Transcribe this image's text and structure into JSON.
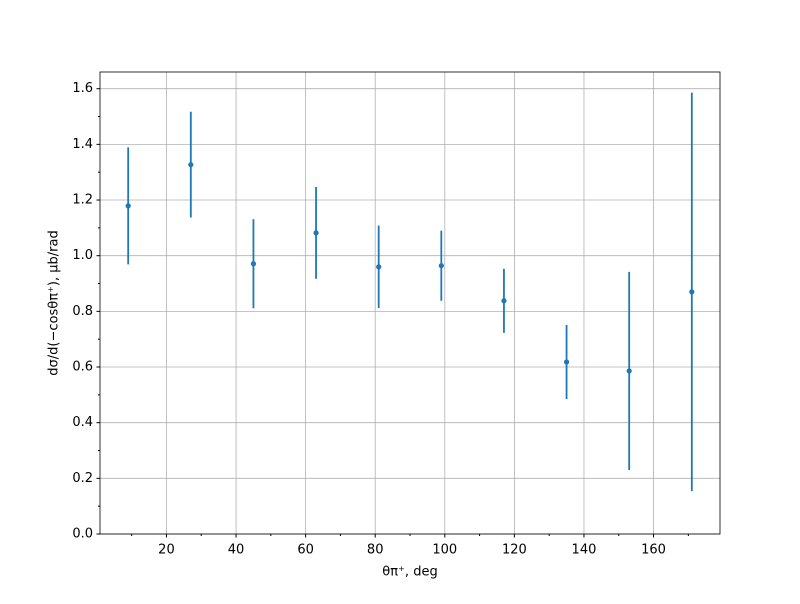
{
  "chart_data": {
    "type": "errorbar",
    "xlabel": "θπ⁺, deg",
    "ylabel": "dσ/d(−cosθπ⁺), μb/rad",
    "x": [
      9,
      27,
      45,
      63,
      81,
      99,
      117,
      135,
      153,
      171
    ],
    "series": [
      {
        "color": "#1f77b4",
        "values": [
          1.179,
          1.327,
          0.971,
          1.082,
          0.96,
          0.964,
          0.838,
          0.618,
          0.586,
          0.87
        ],
        "errors": [
          0.21,
          0.19,
          0.16,
          0.165,
          0.148,
          0.126,
          0.115,
          0.133,
          0.356,
          0.716
        ]
      }
    ],
    "xlim": [
      0.9,
      179.1
    ],
    "ylim": [
      0,
      1.66
    ],
    "xticks": [
      20,
      40,
      60,
      80,
      100,
      120,
      140,
      160
    ],
    "xminorticks": [
      10,
      30,
      50,
      70,
      90,
      110,
      130,
      150,
      170
    ],
    "yticks": [
      {
        "value": 0,
        "label": "0.0"
      },
      0.2,
      0.4,
      0.6,
      0.8,
      {
        "value": 1,
        "label": "1.0"
      },
      1.2,
      1.4,
      1.6
    ],
    "yminorticks": [
      0.1,
      0.3,
      0.5,
      0.7,
      0.9,
      1.1,
      1.3,
      1.5
    ],
    "grid": true
  }
}
